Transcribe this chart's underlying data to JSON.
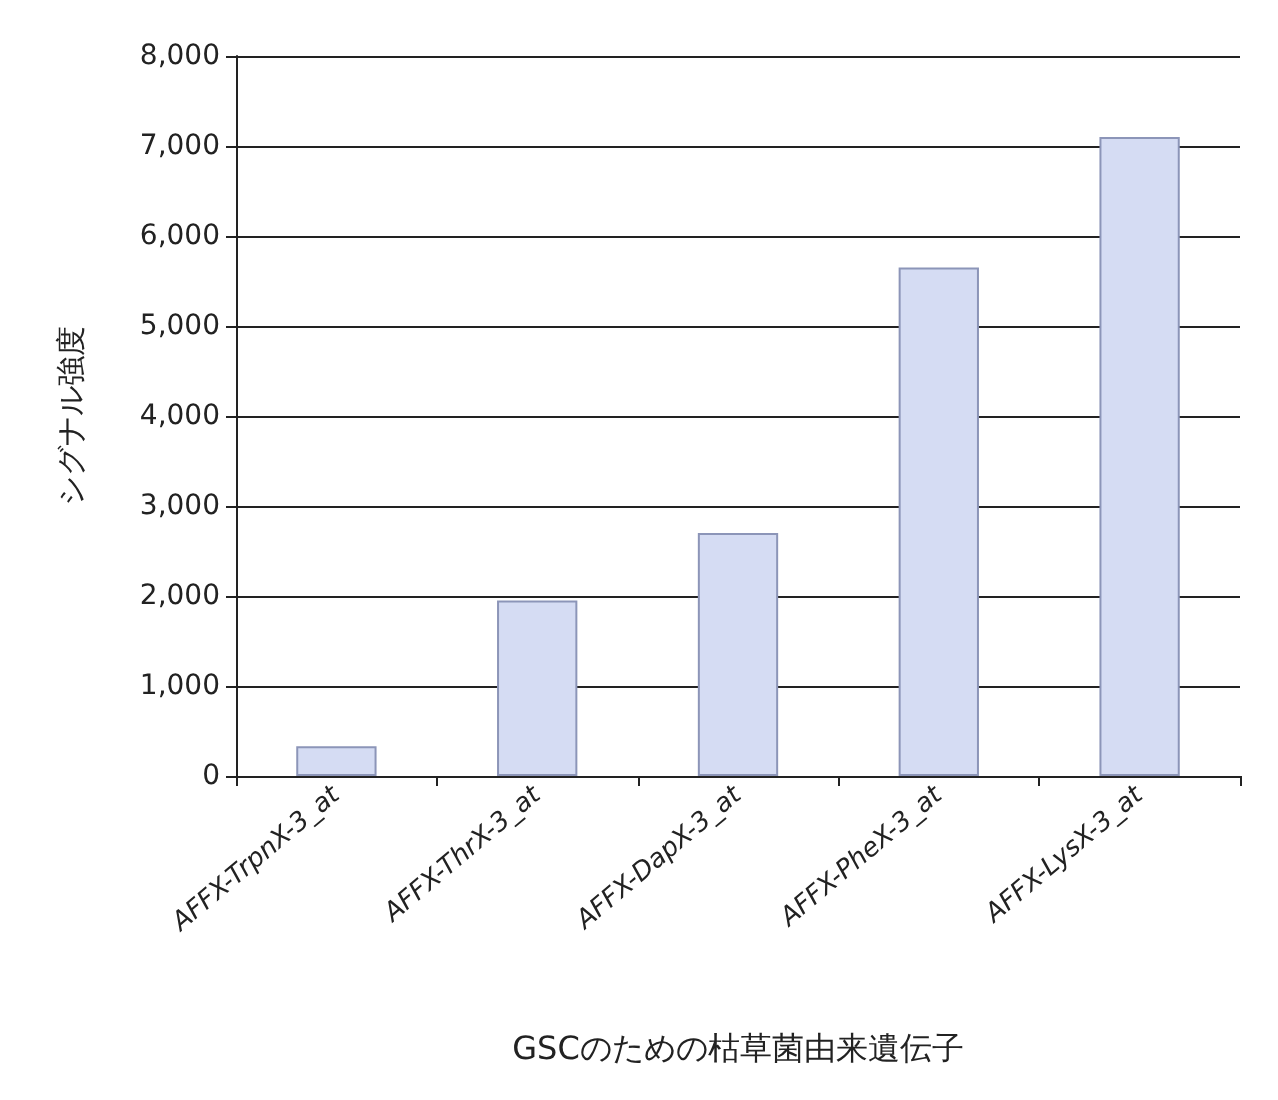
{
  "chart_data": {
    "type": "bar",
    "xlabel": "GSCのための枯草菌由来遺伝子",
    "ylabel": "シグナル強度",
    "categories": [
      "AFFX-TrpnX-3_at",
      "AFFX-ThrX-3_at",
      "AFFX-DapX-3_at",
      "AFFX-PheX-3_at",
      "AFFX-LysX-3_at"
    ],
    "values": [
      330,
      1950,
      2700,
      5650,
      7100
    ],
    "color": "#d5dcf3",
    "ylim": [
      0,
      8000
    ],
    "yticks": [
      0,
      {
        "value": 1000,
        "label": "1,000"
      },
      {
        "value": 2000,
        "label": "2,000"
      },
      {
        "value": 3000,
        "label": "3,000"
      },
      {
        "value": 4000,
        "label": "4,000"
      },
      {
        "value": 5000,
        "label": "5,000"
      },
      {
        "value": 6000,
        "label": "6,000"
      },
      {
        "value": 7000,
        "label": "7,000"
      },
      {
        "value": 8000,
        "label": "8,000"
      }
    ],
    "grid": "y"
  }
}
